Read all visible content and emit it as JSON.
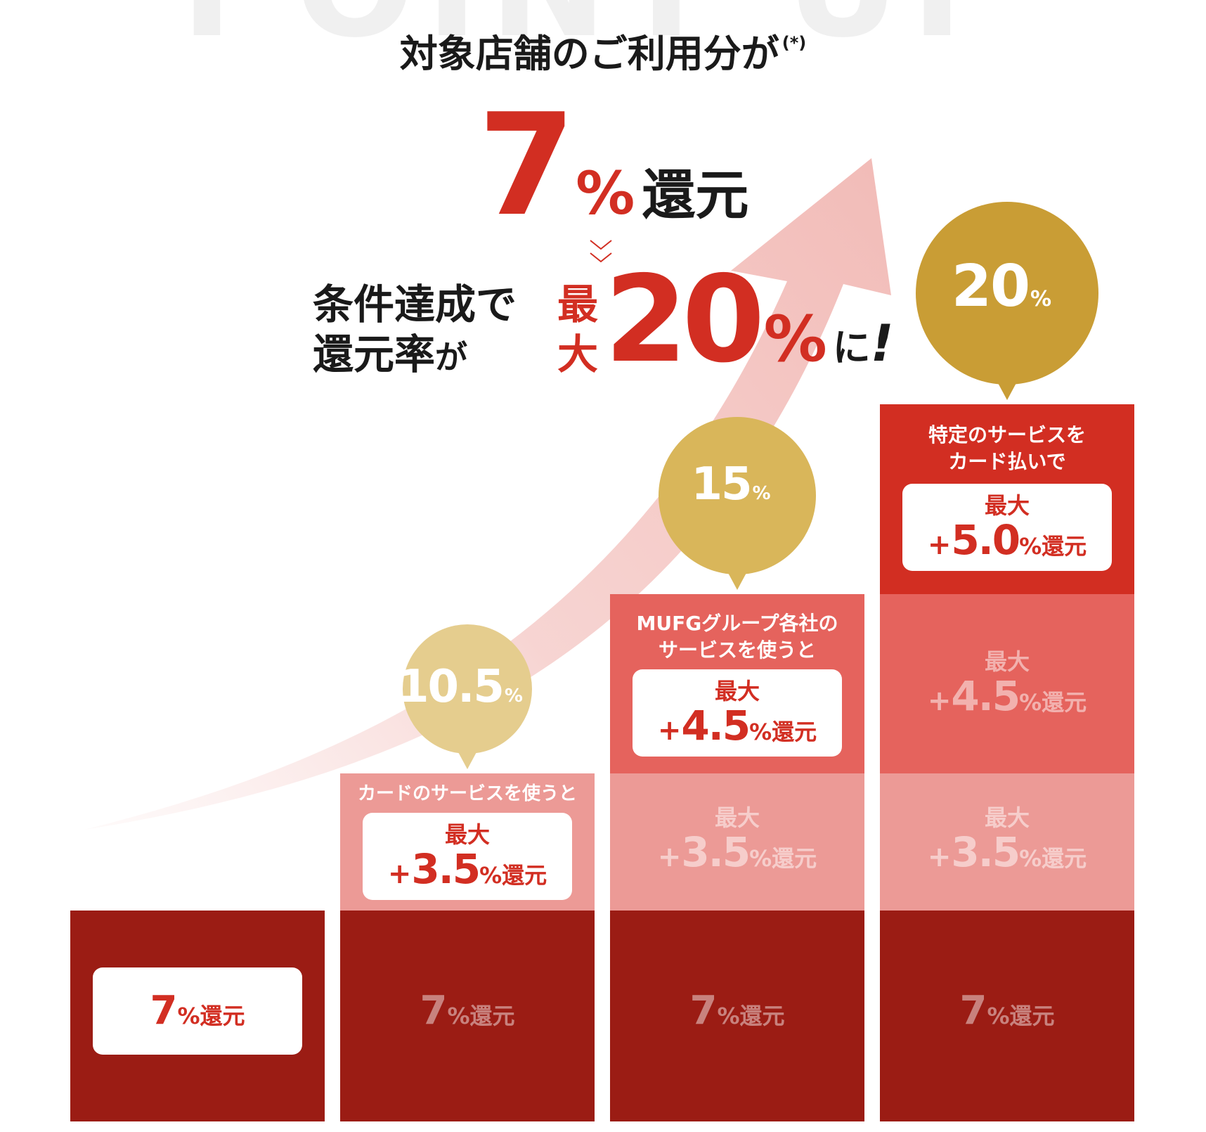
{
  "header": {
    "watermark": "POINT UP",
    "lead": "対象店舗のご利用分が",
    "lead_note": "(*)",
    "base_rate_value": "7",
    "base_rate_percent": "%",
    "base_rate_unit": "還元",
    "condition_line1": "条件達成で",
    "condition_line2_main": "還元率",
    "condition_line2_ga": "が",
    "max_line1": "最",
    "max_line2": "大",
    "max_value": "20",
    "max_percent": "%",
    "max_suffix": "に",
    "max_exclaim": "!"
  },
  "colors": {
    "accent_red": "#d22e22",
    "bar_dark": "#9b1c14",
    "bar_light": "#ec9a96",
    "bar_mid": "#e5635d",
    "bubble_1": "#e5cd8e",
    "bubble_2": "#d9b65a",
    "bubble_3": "#c99d35",
    "arrow": "#f2bfbc"
  },
  "chart_data": {
    "type": "bar",
    "stacked": true,
    "categories": [
      "7%",
      "10.5%",
      "15%",
      "20%"
    ],
    "series": [
      {
        "values": [
          7,
          7,
          7,
          7
        ]
      },
      {
        "values": [
          0,
          3.5,
          3.5,
          3.5
        ]
      },
      {
        "values": [
          0,
          0,
          4.5,
          4.5
        ]
      },
      {
        "values": [
          0,
          0,
          0,
          5.0
        ]
      }
    ],
    "totals": [
      7,
      10.5,
      15,
      20
    ],
    "ylim": [
      0,
      20
    ]
  },
  "bars": {
    "base_num": "7",
    "base_pct": "%",
    "base_unit": "還元",
    "max_label": "最大",
    "plus": "+",
    "pct_unit": "%還元",
    "seg1": {
      "label": "カードのサービスを使うと",
      "amount": "3.5"
    },
    "seg2": {
      "label_1": "MUFGグループ各社の",
      "label_2": "サービスを使うと",
      "amount": "4.5"
    },
    "seg3": {
      "label_1": "特定のサービスを",
      "label_2": "カード払いで",
      "amount": "5.0"
    },
    "bubble_1": {
      "value": "10.5",
      "pct": "%"
    },
    "bubble_2": {
      "value": "15",
      "pct": "%"
    },
    "bubble_3": {
      "value": "20",
      "pct": "%"
    }
  }
}
